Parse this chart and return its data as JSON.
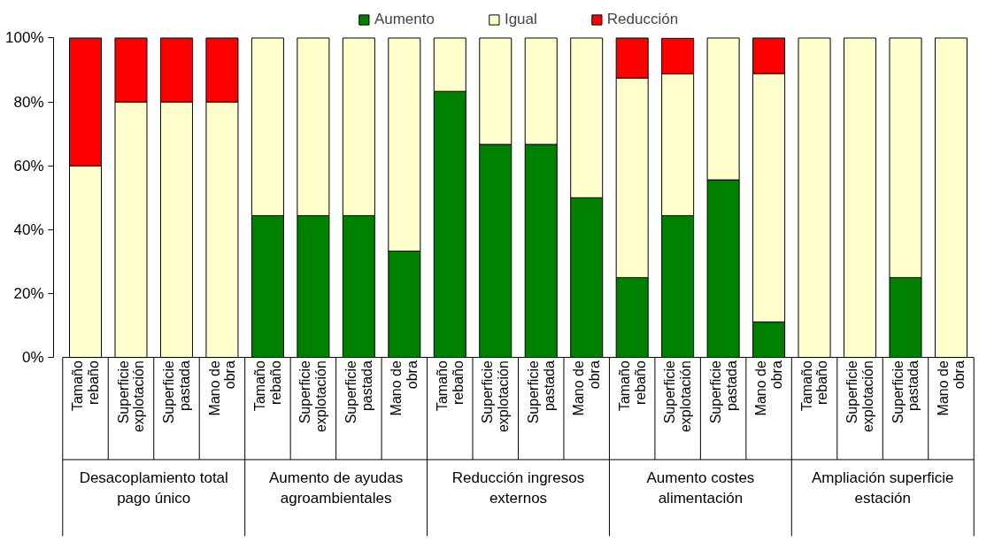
{
  "chart_data": {
    "type": "bar",
    "stacked": true,
    "categories": [
      "Tamaño rebaño",
      "Superficie explotación",
      "Superficie pastada",
      "Mano de obra",
      "Tamaño rebaño",
      "Superficie explotación",
      "Superficie pastada",
      "Mano de obra",
      "Tamaño rebaño",
      "Superficie explotación",
      "Superficie pastada",
      "Mano de obra",
      "Tamaño rebaño",
      "Superficie explotación",
      "Superficie pastada",
      "Mano de obra",
      "Tamaño rebaño",
      "Superficie explotación",
      "Superficie pastada",
      "Mano de obra"
    ],
    "series": [
      {
        "name": "Aumento",
        "color": "#008000",
        "values": [
          0,
          0,
          0,
          0,
          44.4,
          44.4,
          44.4,
          33.3,
          83.3,
          66.7,
          66.7,
          50,
          25,
          44.4,
          55.6,
          11.1,
          0,
          0,
          25,
          0
        ]
      },
      {
        "name": "Igual",
        "color": "#ffffcc",
        "values": [
          60,
          80,
          80,
          80,
          55.6,
          55.6,
          55.6,
          66.7,
          16.7,
          33.3,
          33.3,
          50,
          62.5,
          44.4,
          44.4,
          77.8,
          100,
          100,
          75,
          100
        ]
      },
      {
        "name": "Reducción",
        "color": "#ff0000",
        "values": [
          40,
          20,
          20,
          20,
          0,
          0,
          0,
          0,
          0,
          0,
          0,
          0,
          12.5,
          11.1,
          0,
          11.1,
          0,
          0,
          0,
          0
        ]
      }
    ],
    "annotations": [
      "Desacoplamiento total pago único",
      "Aumento de ayudas agroambientales",
      "Reducción ingresos externos",
      "Aumento costes alimentación",
      "Ampliación superficie estación"
    ],
    "ylim": [
      0,
      100
    ],
    "yticks": [
      {
        "value": 0,
        "label": "0%"
      },
      {
        "value": 20,
        "label": "20%"
      },
      {
        "value": 40,
        "label": "40%"
      },
      {
        "value": 60,
        "label": "60%"
      },
      {
        "value": 80,
        "label": "80%"
      },
      {
        "value": 100,
        "label": "100%"
      }
    ],
    "grid": false,
    "legend": "top"
  }
}
